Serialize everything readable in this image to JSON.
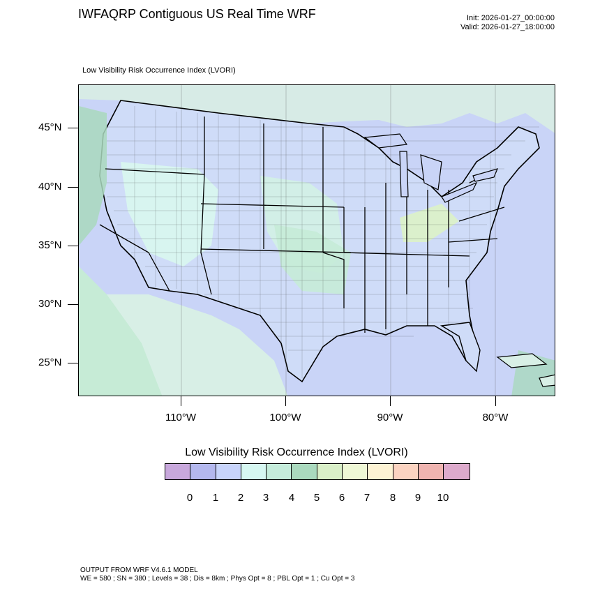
{
  "header": {
    "title": "IWFAQRP Contiguous US Real Time WRF",
    "init": "Init: 2026-01-27_00:00:00",
    "valid": "Valid: 2026-01-27_18:00:00"
  },
  "map": {
    "subtitle": "Low Visibility Risk Occurrence Index   (LVORI)",
    "lat_labels": [
      "45°N",
      "40°N",
      "35°N",
      "30°N",
      "25°N"
    ],
    "lon_labels": [
      "110°W",
      "100°W",
      "90°W",
      "80°W"
    ],
    "colors": {
      "ocean": "#c9d4f7",
      "land_low": "#cfe0f7",
      "land_mid": "#d6f5ef",
      "land_green": "#c6ebd6",
      "terrain_dark": "#a9d8bd",
      "yellowish": "#dbf0c9",
      "boundary": "#000000"
    }
  },
  "colorbar": {
    "title": "Low Visibility Risk Occurrence Index  (LVORI)",
    "labels": [
      "0",
      "1",
      "2",
      "3",
      "4",
      "5",
      "6",
      "7",
      "8",
      "9",
      "10"
    ],
    "colors": [
      "#c8a8dc",
      "#b4b8ee",
      "#c8d4fb",
      "#d6f7f1",
      "#c5ecdb",
      "#aad9be",
      "#d9efc8",
      "#eff8d6",
      "#fdf3d4",
      "#fbd3c1",
      "#efb4b0",
      "#ddaacc"
    ]
  },
  "footer": {
    "line1": "OUTPUT FROM WRF V4.6.1 MODEL",
    "line2": "WE = 580 ; SN = 380 ; Levels = 38 ; Dis = 8km ; Phys Opt = 8 ; PBL Opt = 1 ; Cu Opt = 3"
  }
}
